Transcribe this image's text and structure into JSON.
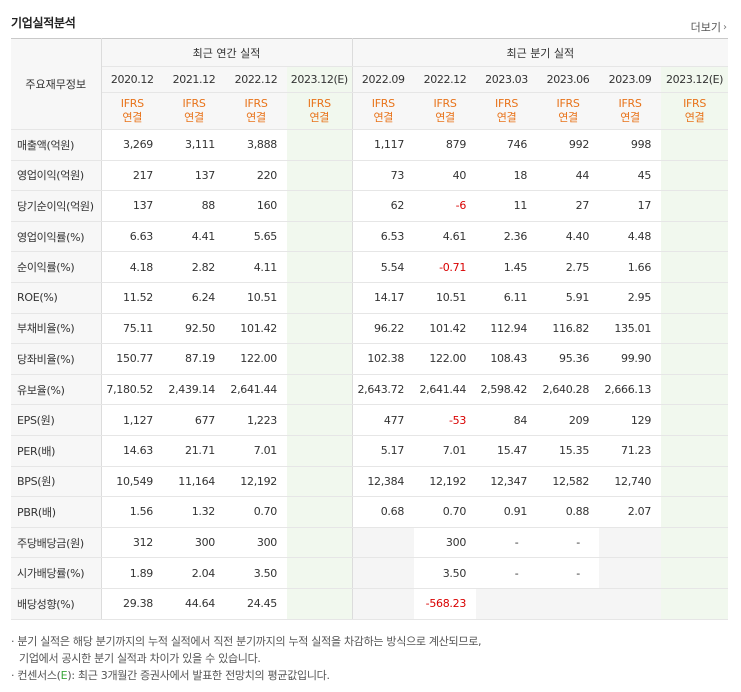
{
  "header": {
    "title": "기업실적분석",
    "more_label": "더보기",
    "more_chevron": "›"
  },
  "table": {
    "label_header": "주요재무정보",
    "annual_group": "최근 연간 실적",
    "quarter_group": "최근 분기 실적",
    "annual_dates": [
      "2020.12",
      "2021.12",
      "2022.12",
      "2023.12(E)"
    ],
    "quarter_dates": [
      "2022.09",
      "2022.12",
      "2023.03",
      "2023.06",
      "2023.09",
      "2023.12(E)"
    ],
    "ifrs_line1": "IFRS",
    "ifrs_line2": "연결",
    "rows": [
      {
        "label": "매출액(억원)",
        "annual": [
          "3,269",
          "3,111",
          "3,888",
          ""
        ],
        "quarter": [
          "1,117",
          "879",
          "746",
          "992",
          "998",
          ""
        ]
      },
      {
        "label": "영업이익(억원)",
        "annual": [
          "217",
          "137",
          "220",
          ""
        ],
        "quarter": [
          "73",
          "40",
          "18",
          "44",
          "45",
          ""
        ]
      },
      {
        "label": "당기순이익(억원)",
        "annual": [
          "137",
          "88",
          "160",
          ""
        ],
        "quarter": [
          "62",
          "-6",
          "11",
          "27",
          "17",
          ""
        ]
      },
      {
        "label": "영업이익률(%)",
        "annual": [
          "6.63",
          "4.41",
          "5.65",
          ""
        ],
        "quarter": [
          "6.53",
          "4.61",
          "2.36",
          "4.40",
          "4.48",
          ""
        ]
      },
      {
        "label": "순이익률(%)",
        "annual": [
          "4.18",
          "2.82",
          "4.11",
          ""
        ],
        "quarter": [
          "5.54",
          "-0.71",
          "1.45",
          "2.75",
          "1.66",
          ""
        ]
      },
      {
        "label": "ROE(%)",
        "annual": [
          "11.52",
          "6.24",
          "10.51",
          ""
        ],
        "quarter": [
          "14.17",
          "10.51",
          "6.11",
          "5.91",
          "2.95",
          ""
        ]
      },
      {
        "label": "부채비율(%)",
        "annual": [
          "75.11",
          "92.50",
          "101.42",
          ""
        ],
        "quarter": [
          "96.22",
          "101.42",
          "112.94",
          "116.82",
          "135.01",
          ""
        ]
      },
      {
        "label": "당좌비율(%)",
        "annual": [
          "150.77",
          "87.19",
          "122.00",
          ""
        ],
        "quarter": [
          "102.38",
          "122.00",
          "108.43",
          "95.36",
          "99.90",
          ""
        ]
      },
      {
        "label": "유보율(%)",
        "annual": [
          "7,180.52",
          "2,439.14",
          "2,641.44",
          ""
        ],
        "quarter": [
          "2,643.72",
          "2,641.44",
          "2,598.42",
          "2,640.28",
          "2,666.13",
          ""
        ]
      },
      {
        "label": "EPS(원)",
        "annual": [
          "1,127",
          "677",
          "1,223",
          ""
        ],
        "quarter": [
          "477",
          "-53",
          "84",
          "209",
          "129",
          ""
        ]
      },
      {
        "label": "PER(배)",
        "annual": [
          "14.63",
          "21.71",
          "7.01",
          ""
        ],
        "quarter": [
          "5.17",
          "7.01",
          "15.47",
          "15.35",
          "71.23",
          ""
        ]
      },
      {
        "label": "BPS(원)",
        "annual": [
          "10,549",
          "11,164",
          "12,192",
          ""
        ],
        "quarter": [
          "12,384",
          "12,192",
          "12,347",
          "12,582",
          "12,740",
          ""
        ]
      },
      {
        "label": "PBR(배)",
        "annual": [
          "1.56",
          "1.32",
          "0.70",
          ""
        ],
        "quarter": [
          "0.68",
          "0.70",
          "0.91",
          "0.88",
          "2.07",
          ""
        ]
      },
      {
        "label": "주당배당금(원)",
        "annual": [
          "312",
          "300",
          "300",
          ""
        ],
        "quarter": [
          "",
          "300",
          "-",
          "-",
          "",
          ""
        ]
      },
      {
        "label": "시가배당률(%)",
        "annual": [
          "1.89",
          "2.04",
          "3.50",
          ""
        ],
        "quarter": [
          "",
          "3.50",
          "-",
          "-",
          "",
          ""
        ]
      },
      {
        "label": "배당성향(%)",
        "annual": [
          "29.38",
          "44.64",
          "24.45",
          ""
        ],
        "quarter": [
          "",
          "-568.23",
          "",
          "",
          "",
          ""
        ]
      }
    ]
  },
  "notes": {
    "line1": "· 분기 실적은 해당 분기까지의 누적 실적에서 직전 분기까지의 누적 실적을 차감하는 방식으로 계산되므로,",
    "line2": "기업에서 공시한 분기 실적과 차이가 있을 수 있습니다.",
    "line3_prefix": "· 컨센서스(",
    "line3_e": "E",
    "line3_suffix": "): 최근 3개월간 증권사에서 발표한 전망치의 평균값입니다."
  },
  "colors": {
    "ifrs_orange": "#e8731a",
    "negative_red": "#d90000",
    "estimate_bg": "#f1f8ee",
    "consensus_green": "#3aa63a"
  }
}
